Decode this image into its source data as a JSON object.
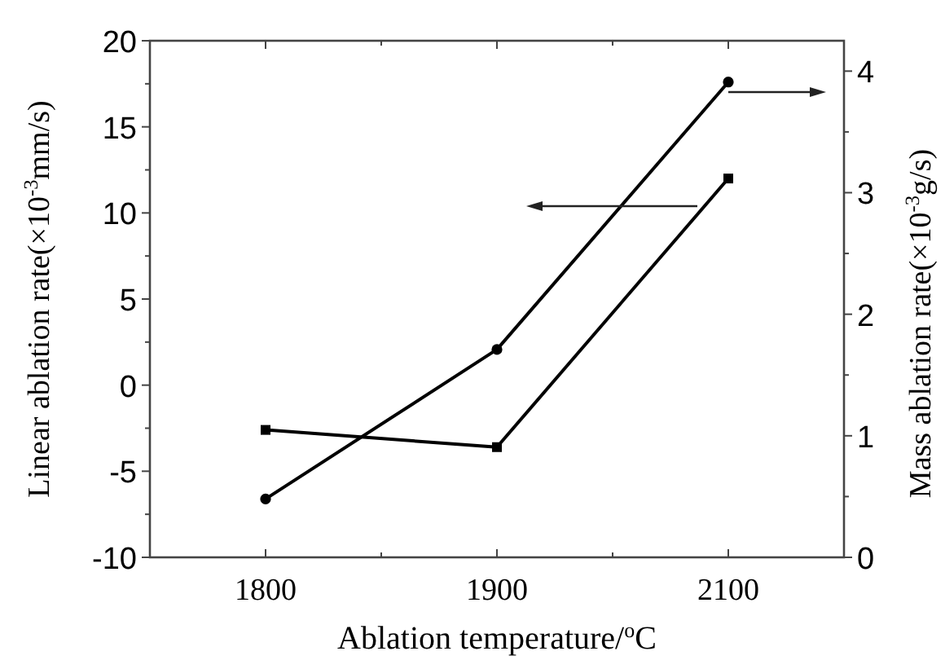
{
  "chart_data": {
    "type": "line",
    "xlabel": "Ablation temperature/$^{o}$C",
    "ylabel": "Linear ablation rate(×10$^{-3}$mm/s)",
    "y2label": "Mass ablation rate(×10$^{-3}$g/s)",
    "categories": [
      "1800",
      "1900",
      "2100"
    ],
    "ylim": [
      -10,
      20
    ],
    "yticks": [
      -10,
      {
        "value": -7.5,
        "label": null
      },
      -5,
      {
        "value": -2.5,
        "label": null
      },
      0,
      {
        "value": 2.5,
        "label": null
      },
      5,
      {
        "value": 7.5,
        "label": null
      },
      10,
      {
        "value": 12.5,
        "label": null
      },
      15,
      {
        "value": 17.5,
        "label": null
      },
      20
    ],
    "y2lim": [
      0,
      4.25
    ],
    "y2ticks": [
      0,
      {
        "value": 0.5,
        "label": null
      },
      1,
      {
        "value": 1.5,
        "label": null
      },
      2,
      {
        "value": 2.5,
        "label": null
      },
      3,
      {
        "value": 3.5,
        "label": null
      },
      4
    ],
    "series": [
      {
        "color": "#000000",
        "marker": "square",
        "values": [
          -2.6,
          -3.6,
          12.0
        ]
      },
      {
        "color": "#000000",
        "marker": "circle",
        "axis": "y2",
        "values": [
          0.48,
          1.71,
          3.91
        ]
      }
    ],
    "line_style": "solid"
  }
}
